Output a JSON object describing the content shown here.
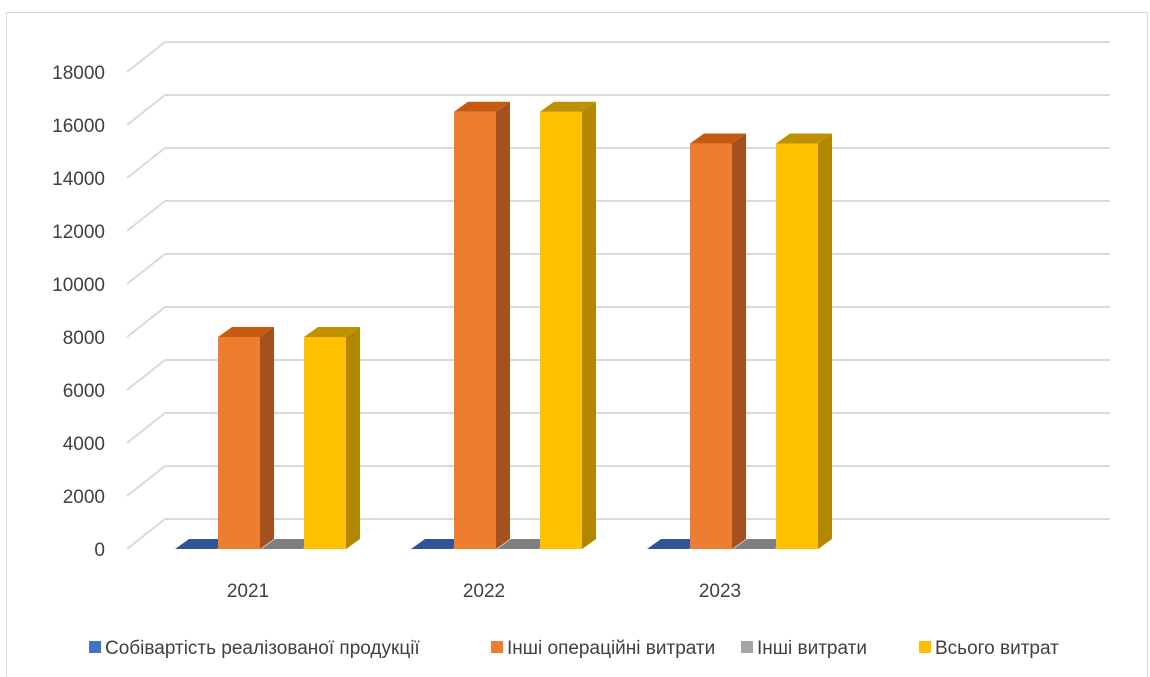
{
  "chart_data": {
    "type": "bar",
    "categories": [
      "2021",
      "2022",
      "2023"
    ],
    "ylim": [
      0,
      18000
    ],
    "yticks": [
      0,
      2000,
      4000,
      6000,
      8000,
      10000,
      12000,
      14000,
      16000,
      18000
    ],
    "series": [
      {
        "name": "Собівартість реалізованої продукції",
        "values": [
          0,
          0,
          0
        ],
        "color": "#4472c4",
        "side": "#2f528f",
        "top": "#2f5597"
      },
      {
        "name": "Інші операційні витрати",
        "values": [
          8000,
          16500,
          15300
        ],
        "color": "#ed7d31",
        "side": "#a5501f",
        "top": "#c55a11"
      },
      {
        "name": "Інші витрати",
        "values": [
          0,
          0,
          0
        ],
        "color": "#a5a5a5",
        "side": "#737373",
        "top": "#7f7f7f"
      },
      {
        "name": "Всього витрат",
        "values": [
          8000,
          16500,
          15300
        ],
        "color": "#ffc000",
        "side": "#b38600",
        "top": "#bf9000"
      }
    ],
    "legend_position": "bottom",
    "grid": true,
    "style": "3d-column"
  }
}
